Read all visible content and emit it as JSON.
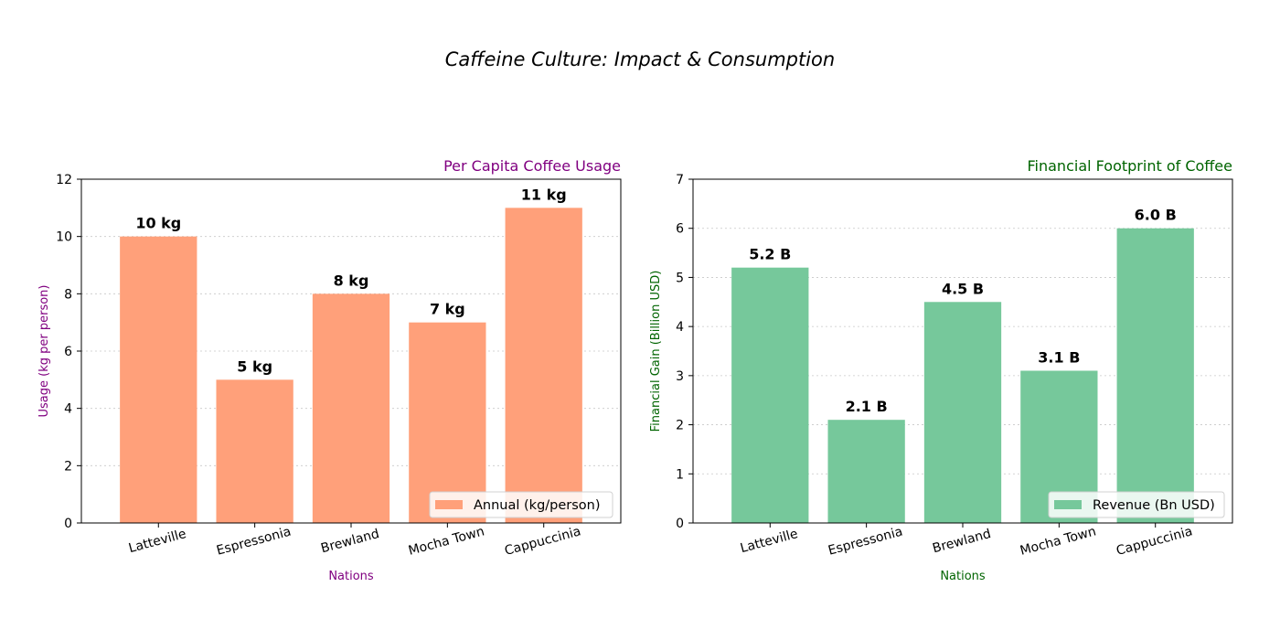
{
  "figure": {
    "title": "Caffeine Culture: Impact & Consumption"
  },
  "chart_data": [
    {
      "type": "bar",
      "title": "Per Capita Coffee Usage",
      "title_color": "#800080",
      "xlabel": "Nations",
      "ylabel": "Usage (kg per person)",
      "label_color": "#800080",
      "categories": [
        "Latteville",
        "Espressonia",
        "Brewland",
        "Mocha Town",
        "Cappuccinia"
      ],
      "series": [
        {
          "name": "Annual (kg/person)",
          "values": [
            10,
            5,
            8,
            7,
            11
          ],
          "color": "#FFA07A"
        }
      ],
      "bar_labels": [
        "10 kg",
        "5 kg",
        "8 kg",
        "7 kg",
        "11 kg"
      ],
      "ylim": [
        0,
        12
      ],
      "yticks": [
        0,
        2,
        4,
        6,
        8,
        10,
        12
      ],
      "grid": "y-dotted",
      "legend_position": "lower-right"
    },
    {
      "type": "bar",
      "title": "Financial Footprint of Coffee",
      "title_color": "#006400",
      "xlabel": "Nations",
      "ylabel": "Financial Gain (Billion USD)",
      "label_color": "#006400",
      "categories": [
        "Latteville",
        "Espressonia",
        "Brewland",
        "Mocha Town",
        "Cappuccinia"
      ],
      "series": [
        {
          "name": "Revenue (Bn USD)",
          "values": [
            5.2,
            2.1,
            4.5,
            3.1,
            6.0
          ],
          "color": "#76C89B"
        }
      ],
      "bar_labels": [
        "5.2 B",
        "2.1 B",
        "4.5 B",
        "3.1 B",
        "6.0 B"
      ],
      "ylim": [
        0,
        7
      ],
      "yticks": [
        0,
        1,
        2,
        3,
        4,
        5,
        6,
        7
      ],
      "grid": "y-dotted",
      "legend_position": "lower-right"
    }
  ]
}
